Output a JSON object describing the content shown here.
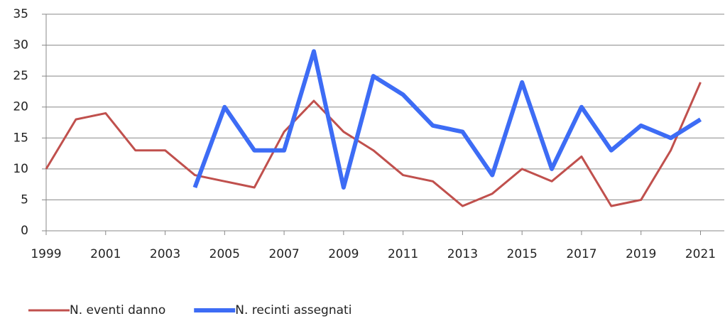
{
  "chart_data": {
    "type": "line",
    "x": [
      1999,
      2000,
      2001,
      2002,
      2003,
      2004,
      2005,
      2006,
      2007,
      2008,
      2009,
      2010,
      2011,
      2012,
      2013,
      2014,
      2015,
      2016,
      2017,
      2018,
      2019,
      2020,
      2021
    ],
    "series": [
      {
        "name": "N. eventi danno",
        "color": "#c0504d",
        "width": 3,
        "values": [
          10,
          18,
          19,
          13,
          13,
          9,
          8,
          7,
          16,
          21,
          16,
          13,
          9,
          8,
          4,
          6,
          10,
          8,
          12,
          4,
          5,
          13,
          24
        ]
      },
      {
        "name": "N. recinti assegnati",
        "color": "#3d6cf5",
        "width": 6,
        "values": [
          null,
          null,
          null,
          null,
          null,
          7,
          20,
          13,
          13,
          29,
          7,
          25,
          22,
          17,
          16,
          9,
          24,
          10,
          20,
          13,
          17,
          15,
          18
        ]
      }
    ],
    "xlim": [
      1999,
      2021.8
    ],
    "xticks": [
      1999,
      2001,
      2003,
      2005,
      2007,
      2009,
      2011,
      2013,
      2015,
      2017,
      2019,
      2021
    ],
    "ylim": [
      0,
      35
    ],
    "yticks": [
      0,
      5,
      10,
      15,
      20,
      25,
      30,
      35
    ],
    "grid": true,
    "legend": "bottom-left"
  }
}
